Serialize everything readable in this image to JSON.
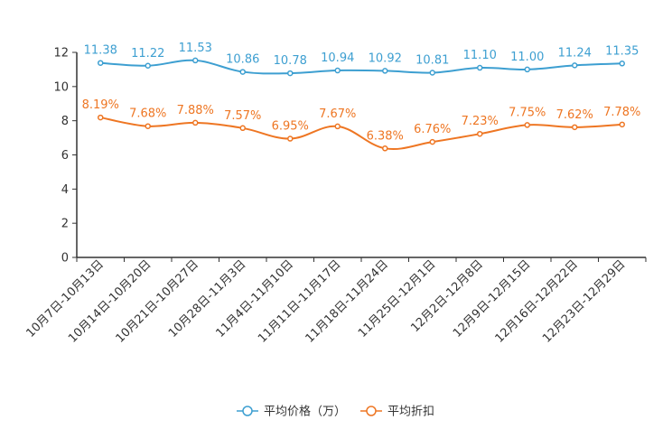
{
  "chart_data": {
    "type": "line",
    "title": "",
    "xlabel": "",
    "ylabel": "",
    "ylim": [
      0,
      12
    ],
    "yticks": [
      0,
      2,
      4,
      6,
      8,
      10,
      12
    ],
    "grid": false,
    "legend_position": "bottom-center",
    "categories": [
      "10月7日-10月13日",
      "10月14日-10月20日",
      "10月21日-10月27日",
      "10月28日-11月3日",
      "11月4日-11月10日",
      "11月11日-11月17日",
      "11月18日-11月24日",
      "11月25日-12月1日",
      "12月2日-12月8日",
      "12月9日-12月15日",
      "12月16日-12月22日",
      "12月23日-12月29日"
    ],
    "series": [
      {
        "name": "平均价格（万）",
        "color": "#3d9fd1",
        "values": [
          11.38,
          11.22,
          11.53,
          10.86,
          10.78,
          10.94,
          10.92,
          10.81,
          11.1,
          11.0,
          11.24,
          11.35
        ],
        "labels": [
          "11.38",
          "11.22",
          "11.53",
          "10.86",
          "10.78",
          "10.94",
          "10.92",
          "10.81",
          "11.10",
          "11.00",
          "11.24",
          "11.35"
        ]
      },
      {
        "name": "平均折扣",
        "color": "#ee7623",
        "values": [
          8.19,
          7.68,
          7.88,
          7.57,
          6.95,
          7.67,
          6.38,
          6.76,
          7.23,
          7.75,
          7.62,
          7.78
        ],
        "labels": [
          "8.19%",
          "7.68%",
          "7.88%",
          "7.57%",
          "6.95%",
          "7.67%",
          "6.38%",
          "6.76%",
          "7.23%",
          "7.75%",
          "7.62%",
          "7.78%"
        ]
      }
    ]
  }
}
